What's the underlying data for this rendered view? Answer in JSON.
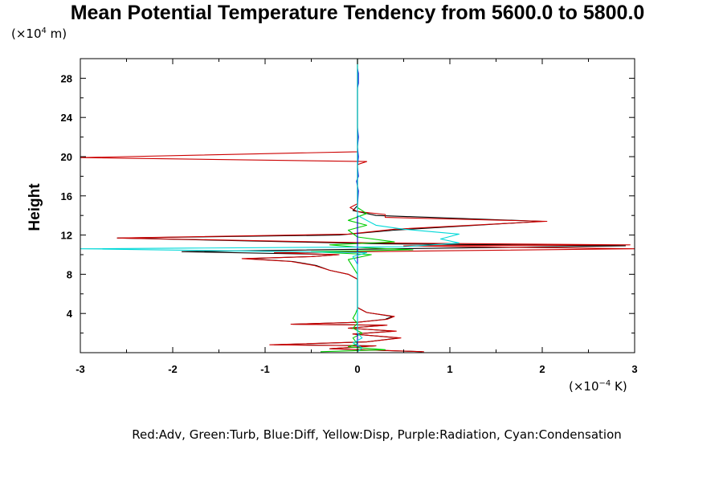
{
  "chart_data": {
    "type": "line",
    "title": "Mean Potential Temperature Tendency from 5600.0 to 5800.0",
    "ylabel": "Height",
    "y_scale": {
      "prefix": "(×10",
      "exp": "4",
      "suffix": " m)"
    },
    "x_scale": {
      "prefix": "(×10",
      "exp": "−4",
      "suffix": " K)"
    },
    "xlim": [
      -3,
      3
    ],
    "ylim": [
      0,
      30
    ],
    "x_ticks": [
      {
        "value": -3,
        "label": "-3"
      },
      {
        "value": -2,
        "label": "-2"
      },
      {
        "value": -1,
        "label": "-1"
      },
      {
        "value": 0,
        "label": "0"
      },
      {
        "value": 1,
        "label": "1"
      },
      {
        "value": 2,
        "label": "2"
      },
      {
        "value": 3,
        "label": "3"
      }
    ],
    "y_ticks": [
      {
        "value": 4,
        "label": "4"
      },
      {
        "value": 8,
        "label": "8"
      },
      {
        "value": 12,
        "label": "12"
      },
      {
        "value": 16,
        "label": "16"
      },
      {
        "value": 20,
        "label": "20"
      },
      {
        "value": 24,
        "label": "24"
      },
      {
        "value": 28,
        "label": "28"
      }
    ],
    "legend_text": "Red:Adv, Green:Turb, Blue:Diff, Yellow:Disp, Purple:Radiation, Cyan:Condensation",
    "series": [
      {
        "name": "Total",
        "color": "#000000",
        "points": [
          [
            0.7,
            0.1
          ],
          [
            -0.3,
            0.4
          ],
          [
            0.2,
            0.7
          ],
          [
            -0.9,
            0.8
          ],
          [
            0.1,
            1.1
          ],
          [
            0.45,
            1.5
          ],
          [
            -0.05,
            1.9
          ],
          [
            0.4,
            2.2
          ],
          [
            -0.1,
            2.5
          ],
          [
            0.3,
            2.8
          ],
          [
            -0.7,
            2.9
          ],
          [
            0.0,
            3.1
          ],
          [
            0.3,
            3.4
          ],
          [
            0.38,
            3.7
          ],
          [
            0.1,
            4.1
          ],
          [
            0.0,
            4.6
          ],
          [
            0.0,
            5.5
          ],
          [
            0.0,
            7.5
          ],
          [
            -0.1,
            8.0
          ],
          [
            -0.3,
            8.4
          ],
          [
            -0.45,
            8.9
          ],
          [
            -0.7,
            9.3
          ],
          [
            -1.2,
            9.6
          ],
          [
            -0.5,
            9.8
          ],
          [
            -0.2,
            10.0
          ],
          [
            -1.9,
            10.3
          ],
          [
            0.4,
            10.6
          ],
          [
            2.9,
            10.9
          ],
          [
            0.3,
            11.1
          ],
          [
            -2.6,
            11.7
          ],
          [
            -0.2,
            12.0
          ],
          [
            0.4,
            12.5
          ],
          [
            2.0,
            13.4
          ],
          [
            0.2,
            14.0
          ],
          [
            -0.05,
            14.5
          ],
          [
            0.0,
            15.0
          ],
          [
            0.0,
            16.0
          ],
          [
            0.0,
            18.0
          ],
          [
            0.0,
            19.0
          ],
          [
            0.0,
            21.0
          ],
          [
            0.0,
            24.0
          ],
          [
            0.0,
            28.0
          ],
          [
            0.0,
            30.0
          ]
        ]
      },
      {
        "name": "Adv",
        "color": "#cc0000",
        "points": [
          [
            0.72,
            0.1
          ],
          [
            -0.3,
            0.4
          ],
          [
            0.2,
            0.7
          ],
          [
            -0.95,
            0.8
          ],
          [
            0.1,
            1.1
          ],
          [
            0.47,
            1.5
          ],
          [
            -0.05,
            1.9
          ],
          [
            0.42,
            2.2
          ],
          [
            -0.1,
            2.5
          ],
          [
            0.32,
            2.8
          ],
          [
            -0.72,
            2.9
          ],
          [
            0.0,
            3.1
          ],
          [
            0.32,
            3.4
          ],
          [
            0.4,
            3.7
          ],
          [
            0.1,
            4.1
          ],
          [
            0.0,
            4.6
          ],
          [
            0.0,
            5.5
          ],
          [
            0.0,
            7.5
          ],
          [
            -0.1,
            8.0
          ],
          [
            -0.3,
            8.4
          ],
          [
            -0.47,
            8.9
          ],
          [
            -0.72,
            9.3
          ],
          [
            -1.25,
            9.6
          ],
          [
            -0.5,
            9.8
          ],
          [
            -0.2,
            10.0
          ],
          [
            -0.9,
            10.2
          ],
          [
            1.0,
            10.4
          ],
          [
            3.0,
            10.6
          ],
          [
            0.5,
            10.9
          ],
          [
            2.95,
            11.0
          ],
          [
            0.2,
            11.2
          ],
          [
            -2.6,
            11.7
          ],
          [
            -0.1,
            12.1
          ],
          [
            0.4,
            12.6
          ],
          [
            2.05,
            13.4
          ],
          [
            0.3,
            13.8
          ],
          [
            0.3,
            14.1
          ],
          [
            0.0,
            14.4
          ],
          [
            -0.08,
            14.8
          ],
          [
            0.0,
            15.2
          ],
          [
            0.0,
            16.0
          ],
          [
            0.0,
            19.2
          ],
          [
            0.1,
            19.5
          ],
          [
            -3.0,
            19.9
          ],
          [
            0.0,
            20.5
          ],
          [
            0.0,
            24.0
          ],
          [
            0.0,
            28.0
          ],
          [
            0.0,
            30.0
          ]
        ]
      },
      {
        "name": "Turb",
        "color": "#00cc00",
        "points": [
          [
            -0.4,
            0.1
          ],
          [
            0.3,
            0.3
          ],
          [
            -0.1,
            0.6
          ],
          [
            0.0,
            0.9
          ],
          [
            -0.05,
            1.5
          ],
          [
            0.05,
            2.0
          ],
          [
            -0.05,
            2.5
          ],
          [
            0.0,
            3.0
          ],
          [
            -0.05,
            3.5
          ],
          [
            -0.02,
            4.0
          ],
          [
            0.0,
            4.5
          ],
          [
            0.0,
            8.0
          ],
          [
            -0.1,
            9.5
          ],
          [
            0.15,
            10.0
          ],
          [
            -0.5,
            10.3
          ],
          [
            0.6,
            10.5
          ],
          [
            0.1,
            10.7
          ],
          [
            -0.3,
            11.0
          ],
          [
            0.4,
            11.3
          ],
          [
            0.0,
            11.8
          ],
          [
            -0.1,
            12.5
          ],
          [
            0.1,
            13.0
          ],
          [
            -0.1,
            13.5
          ],
          [
            0.1,
            14.2
          ],
          [
            0.0,
            14.8
          ],
          [
            0.0,
            16.0
          ],
          [
            0.0,
            30.0
          ]
        ]
      },
      {
        "name": "Diff",
        "color": "#0000cc",
        "points": [
          [
            0.0,
            0.5
          ],
          [
            0.0,
            15.0
          ],
          [
            0.01,
            16.5
          ],
          [
            -0.01,
            17.5
          ],
          [
            0.01,
            18.0
          ],
          [
            0.0,
            19.0
          ],
          [
            0.01,
            20.0
          ],
          [
            0.0,
            21.0
          ],
          [
            0.01,
            22.0
          ],
          [
            0.0,
            23.0
          ],
          [
            0.0,
            27.0
          ],
          [
            0.01,
            27.5
          ],
          [
            0.01,
            28.5
          ],
          [
            0.0,
            29.0
          ]
        ]
      },
      {
        "name": "Condensation",
        "color": "#00d8d8",
        "points": [
          [
            0.0,
            0.1
          ],
          [
            0.05,
            0.5
          ],
          [
            -0.05,
            1.0
          ],
          [
            0.05,
            1.5
          ],
          [
            0.0,
            2.0
          ],
          [
            0.0,
            9.0
          ],
          [
            -0.05,
            9.8
          ],
          [
            0.1,
            10.2
          ],
          [
            -3.0,
            10.6
          ],
          [
            0.5,
            10.8
          ],
          [
            1.1,
            11.2
          ],
          [
            0.9,
            11.6
          ],
          [
            1.1,
            12.1
          ],
          [
            0.5,
            12.6
          ],
          [
            0.2,
            13.0
          ],
          [
            0.0,
            14.0
          ],
          [
            0.0,
            20.0
          ],
          [
            0.0,
            30.0
          ]
        ]
      }
    ]
  }
}
